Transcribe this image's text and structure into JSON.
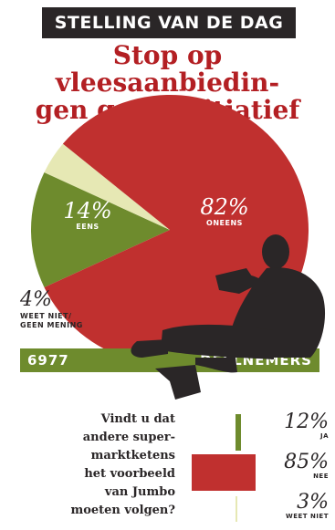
{
  "header": {
    "banner": "STELLING VAN DE DAG",
    "headline_line1": "Stop op vleesaanbiedin-",
    "headline_line2": "gen goed initiatief"
  },
  "colors": {
    "red": "#c0302f",
    "green": "#6e8b2d",
    "cream": "#e6e8b4",
    "dark": "#2a2627"
  },
  "pie": {
    "slices": [
      {
        "pct_text": "82%",
        "label": "ONEENS",
        "value": 82
      },
      {
        "pct_text": "14%",
        "label": "EENS",
        "value": 14
      },
      {
        "pct_text": "4%",
        "label_line1": "WEET NIET/",
        "label_line2": "GEEN MENING",
        "value": 4
      }
    ]
  },
  "participants": {
    "count": "6977",
    "label": "DEELNEMERS"
  },
  "question": {
    "lines": [
      "Vindt u dat",
      "andere super-",
      "marktketens",
      "het voorbeeld",
      "van Jumbo",
      "moeten volgen?"
    ],
    "answers": [
      {
        "pct_text": "12%",
        "label": "JA",
        "value": 12
      },
      {
        "pct_text": "85%",
        "label": "NEE",
        "value": 85
      },
      {
        "pct_text": "3%",
        "label": "WEET NIET",
        "value": 3
      }
    ]
  },
  "chart_data": [
    {
      "type": "pie",
      "title": "Stop op vleesaanbiedingen goed initiatief",
      "categories": [
        "ONEENS",
        "EENS",
        "WEET NIET/ GEEN MENING"
      ],
      "values": [
        82,
        14,
        4
      ],
      "colors": [
        "#c0302f",
        "#6e8b2d",
        "#e6e8b4"
      ]
    },
    {
      "type": "bar",
      "title": "Vindt u dat andere supermarktketens het voorbeeld van Jumbo moeten volgen?",
      "categories": [
        "JA",
        "NEE",
        "WEET NIET"
      ],
      "values": [
        12,
        85,
        3
      ],
      "colors": [
        "#6e8b2d",
        "#c0302f",
        "#e6e8b4"
      ]
    }
  ]
}
